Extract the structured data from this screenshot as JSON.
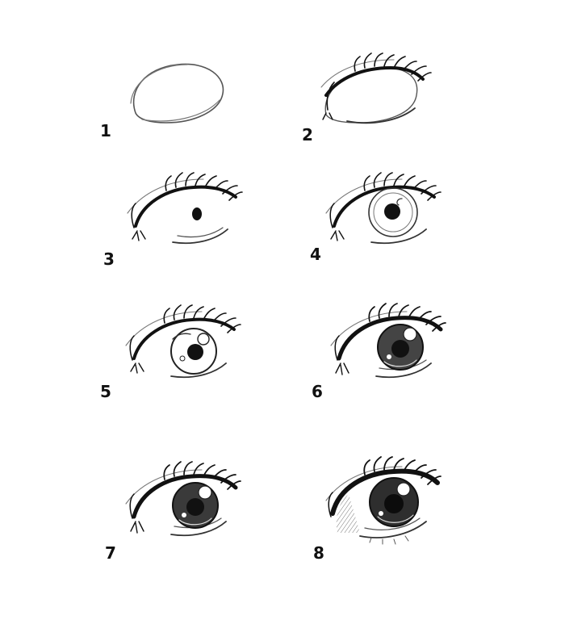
{
  "steps": [
    {
      "number": "1"
    },
    {
      "number": "2"
    },
    {
      "number": "3"
    },
    {
      "number": "4"
    },
    {
      "number": "5"
    },
    {
      "number": "6"
    },
    {
      "number": "7"
    },
    {
      "number": "8"
    }
  ],
  "colors": {
    "background": "#ffffff",
    "ink": "#111111",
    "sketch": "#555555",
    "shade": "#888888"
  }
}
